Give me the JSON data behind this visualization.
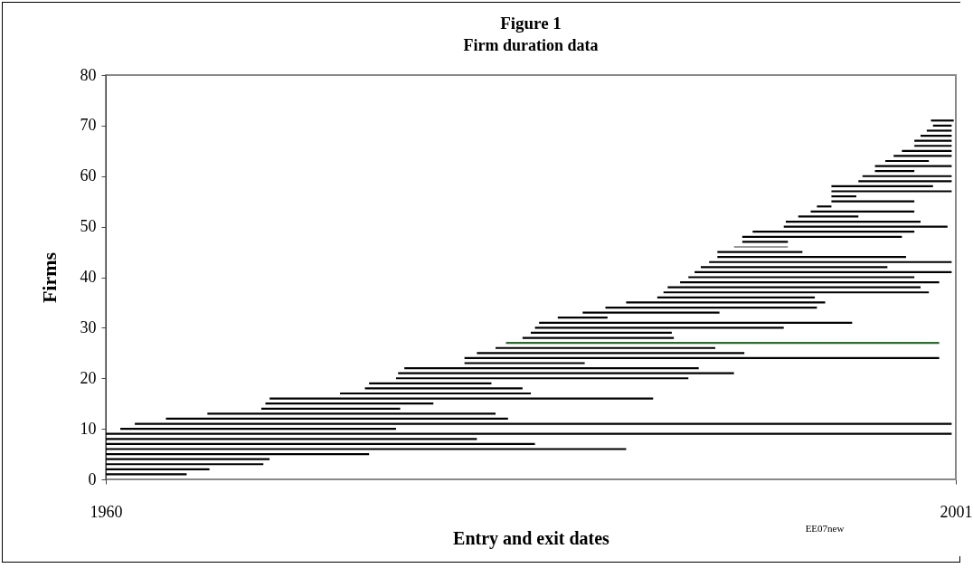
{
  "chart_data": {
    "type": "line",
    "title": "Figure 1",
    "subtitle": "Firm duration data",
    "xlabel": "Entry and exit dates",
    "ylabel": "Firms",
    "xlim": [
      1960,
      2001
    ],
    "ylim": [
      0,
      80
    ],
    "xticks": [
      1960,
      2001
    ],
    "yticks": [
      0,
      10,
      20,
      30,
      40,
      50,
      60,
      70,
      80
    ],
    "grid": false,
    "annotations": [
      "EE07new"
    ],
    "series": [
      {
        "x": [
          1960,
          1963.9
        ],
        "values": [
          1,
          1
        ],
        "color": "#000000"
      },
      {
        "x": [
          1960,
          1965.0
        ],
        "values": [
          2,
          2
        ],
        "color": "#000000"
      },
      {
        "x": [
          1960,
          1967.6
        ],
        "values": [
          3,
          3
        ],
        "color": "#000000"
      },
      {
        "x": [
          1960,
          1967.9
        ],
        "values": [
          4,
          4
        ],
        "color": "#000000"
      },
      {
        "x": [
          1960,
          1972.7
        ],
        "values": [
          5,
          5
        ],
        "color": "#000000"
      },
      {
        "x": [
          1960,
          1985.1
        ],
        "values": [
          6,
          6
        ],
        "color": "#000000"
      },
      {
        "x": [
          1960,
          1980.7
        ],
        "values": [
          7,
          7
        ],
        "color": "#000000"
      },
      {
        "x": [
          1960,
          1977.9
        ],
        "values": [
          8,
          8
        ],
        "color": "#000000"
      },
      {
        "x": [
          1960,
          2000.8
        ],
        "values": [
          9,
          9
        ],
        "color": "#000000"
      },
      {
        "x": [
          1960.7,
          1974.0
        ],
        "values": [
          10,
          10
        ],
        "color": "#000000"
      },
      {
        "x": [
          1961.4,
          2000.8
        ],
        "values": [
          11,
          11
        ],
        "color": "#000000"
      },
      {
        "x": [
          1962.9,
          1979.4
        ],
        "values": [
          12,
          12
        ],
        "color": "#000000"
      },
      {
        "x": [
          1964.9,
          1978.8
        ],
        "values": [
          13,
          13
        ],
        "color": "#000000"
      },
      {
        "x": [
          1967.5,
          1974.2
        ],
        "values": [
          14,
          14
        ],
        "color": "#000000"
      },
      {
        "x": [
          1967.7,
          1975.8
        ],
        "values": [
          15,
          15
        ],
        "color": "#000000"
      },
      {
        "x": [
          1967.9,
          1986.4
        ],
        "values": [
          16,
          16
        ],
        "color": "#000000"
      },
      {
        "x": [
          1971.3,
          1980.5
        ],
        "values": [
          17,
          17
        ],
        "color": "#000000"
      },
      {
        "x": [
          1972.5,
          1980.1
        ],
        "values": [
          18,
          18
        ],
        "color": "#000000"
      },
      {
        "x": [
          1972.7,
          1978.6
        ],
        "values": [
          19,
          19
        ],
        "color": "#000000"
      },
      {
        "x": [
          1974.0,
          1988.1
        ],
        "values": [
          20,
          20
        ],
        "color": "#000000"
      },
      {
        "x": [
          1974.1,
          1990.3
        ],
        "values": [
          21,
          21
        ],
        "color": "#000000"
      },
      {
        "x": [
          1974.4,
          1988.6
        ],
        "values": [
          22,
          22
        ],
        "color": "#000000"
      },
      {
        "x": [
          1977.3,
          1983.1
        ],
        "values": [
          23,
          23
        ],
        "color": "#000000"
      },
      {
        "x": [
          1977.3,
          2000.2
        ],
        "values": [
          24,
          24
        ],
        "color": "#000000"
      },
      {
        "x": [
          1977.9,
          1990.8
        ],
        "values": [
          25,
          25
        ],
        "color": "#000000"
      },
      {
        "x": [
          1978.8,
          1989.4
        ],
        "values": [
          26,
          26
        ],
        "color": "#000000"
      },
      {
        "x": [
          1979.3,
          2000.2
        ],
        "values": [
          27,
          27
        ],
        "color": "#2e6b2e"
      },
      {
        "x": [
          1980.1,
          1987.4
        ],
        "values": [
          28,
          28
        ],
        "color": "#000000"
      },
      {
        "x": [
          1980.5,
          1987.3
        ],
        "values": [
          29,
          29
        ],
        "color": "#000000"
      },
      {
        "x": [
          1980.7,
          1992.7
        ],
        "values": [
          30,
          30
        ],
        "color": "#000000"
      },
      {
        "x": [
          1980.9,
          1996.0
        ],
        "values": [
          31,
          31
        ],
        "color": "#000000"
      },
      {
        "x": [
          1981.8,
          1984.2
        ],
        "values": [
          32,
          32
        ],
        "color": "#000000"
      },
      {
        "x": [
          1983.0,
          1989.6
        ],
        "values": [
          33,
          33
        ],
        "color": "#000000"
      },
      {
        "x": [
          1984.1,
          1994.3
        ],
        "values": [
          34,
          34
        ],
        "color": "#000000"
      },
      {
        "x": [
          1985.1,
          1994.7
        ],
        "values": [
          35,
          35
        ],
        "color": "#000000"
      },
      {
        "x": [
          1986.6,
          1994.2
        ],
        "values": [
          36,
          36
        ],
        "color": "#000000"
      },
      {
        "x": [
          1986.9,
          1999.7
        ],
        "values": [
          37,
          37
        ],
        "color": "#000000"
      },
      {
        "x": [
          1987.1,
          1999.3
        ],
        "values": [
          38,
          38
        ],
        "color": "#000000"
      },
      {
        "x": [
          1987.7,
          2000.2
        ],
        "values": [
          39,
          39
        ],
        "color": "#000000"
      },
      {
        "x": [
          1988.1,
          1999.0
        ],
        "values": [
          40,
          40
        ],
        "color": "#000000"
      },
      {
        "x": [
          1988.4,
          2000.8
        ],
        "values": [
          41,
          41
        ],
        "color": "#000000"
      },
      {
        "x": [
          1988.7,
          1997.7
        ],
        "values": [
          42,
          42
        ],
        "color": "#000000"
      },
      {
        "x": [
          1989.1,
          2000.8
        ],
        "values": [
          43,
          43
        ],
        "color": "#000000"
      },
      {
        "x": [
          1989.5,
          1998.6
        ],
        "values": [
          44,
          44
        ],
        "color": "#000000"
      },
      {
        "x": [
          1989.5,
          1993.6
        ],
        "values": [
          45,
          45
        ],
        "color": "#000000"
      },
      {
        "x": [
          1990.3,
          1992.9
        ],
        "values": [
          46,
          46
        ],
        "color": "#999999"
      },
      {
        "x": [
          1990.7,
          1992.9
        ],
        "values": [
          47,
          47
        ],
        "color": "#000000"
      },
      {
        "x": [
          1990.7,
          1998.4
        ],
        "values": [
          48,
          48
        ],
        "color": "#000000"
      },
      {
        "x": [
          1991.2,
          1999.0
        ],
        "values": [
          49,
          49
        ],
        "color": "#000000"
      },
      {
        "x": [
          1992.7,
          2000.6
        ],
        "values": [
          50,
          50
        ],
        "color": "#000000"
      },
      {
        "x": [
          1992.8,
          1999.3
        ],
        "values": [
          51,
          51
        ],
        "color": "#000000"
      },
      {
        "x": [
          1993.4,
          1996.3
        ],
        "values": [
          52,
          52
        ],
        "color": "#000000"
      },
      {
        "x": [
          1994.0,
          1999.0
        ],
        "values": [
          53,
          53
        ],
        "color": "#000000"
      },
      {
        "x": [
          1994.3,
          1995.0
        ],
        "values": [
          54,
          54
        ],
        "color": "#000000"
      },
      {
        "x": [
          1995.0,
          1999.0
        ],
        "values": [
          55,
          55
        ],
        "color": "#000000"
      },
      {
        "x": [
          1995.0,
          1996.2
        ],
        "values": [
          56,
          56
        ],
        "color": "#000000"
      },
      {
        "x": [
          1995.0,
          2000.8
        ],
        "values": [
          57,
          57
        ],
        "color": "#000000"
      },
      {
        "x": [
          1995.0,
          1999.9
        ],
        "values": [
          58,
          58
        ],
        "color": "#000000"
      },
      {
        "x": [
          1996.3,
          2000.8
        ],
        "values": [
          59,
          59
        ],
        "color": "#000000"
      },
      {
        "x": [
          1996.5,
          2000.8
        ],
        "values": [
          60,
          60
        ],
        "color": "#000000"
      },
      {
        "x": [
          1997.1,
          1999.0
        ],
        "values": [
          61,
          61
        ],
        "color": "#000000"
      },
      {
        "x": [
          1997.1,
          2000.8
        ],
        "values": [
          62,
          62
        ],
        "color": "#000000"
      },
      {
        "x": [
          1997.6,
          1999.7
        ],
        "values": [
          63,
          63
        ],
        "color": "#000000"
      },
      {
        "x": [
          1998.0,
          2000.8
        ],
        "values": [
          64,
          64
        ],
        "color": "#000000"
      },
      {
        "x": [
          1998.4,
          2000.8
        ],
        "values": [
          65,
          65
        ],
        "color": "#000000"
      },
      {
        "x": [
          1999.0,
          2000.8
        ],
        "values": [
          66,
          66
        ],
        "color": "#000000"
      },
      {
        "x": [
          1999.0,
          2000.8
        ],
        "values": [
          67,
          67
        ],
        "color": "#000000"
      },
      {
        "x": [
          1999.3,
          2000.8
        ],
        "values": [
          68,
          68
        ],
        "color": "#000000"
      },
      {
        "x": [
          1999.6,
          2000.8
        ],
        "values": [
          69,
          69
        ],
        "color": "#000000"
      },
      {
        "x": [
          1999.9,
          2000.8
        ],
        "values": [
          70,
          70
        ],
        "color": "#000000"
      },
      {
        "x": [
          1999.8,
          2000.9
        ],
        "values": [
          71,
          71
        ],
        "color": "#000000"
      }
    ]
  }
}
